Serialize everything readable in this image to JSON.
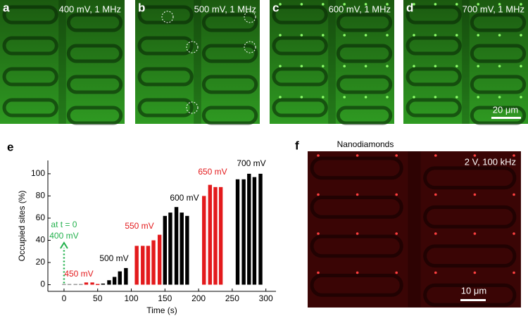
{
  "panels": [
    {
      "label": "a",
      "caption": "400 mV, 1 MHz"
    },
    {
      "label": "b",
      "caption": "500 mV, 1 MHz"
    },
    {
      "label": "c",
      "caption": "600 mV, 1 MHz"
    },
    {
      "label": "d",
      "caption": "700 mV, 1 MHz",
      "scale_bar": "20 μm"
    }
  ],
  "chart_data": {
    "type": "bar",
    "panel_label": "e",
    "x_label": "Time (s)",
    "y_label": "Occupied sites (%)",
    "x": [
      0,
      8,
      17,
      25,
      33,
      42,
      50,
      58,
      67,
      75,
      83,
      92,
      108,
      117,
      125,
      133,
      142,
      150,
      158,
      167,
      175,
      183,
      208,
      217,
      225,
      233,
      258,
      267,
      275,
      283,
      292
    ],
    "values": [
      0,
      0,
      0,
      0,
      2,
      2,
      0,
      1,
      4,
      7,
      12,
      15,
      35,
      35,
      35,
      40,
      45,
      62,
      65,
      70,
      65,
      62,
      80,
      90,
      88,
      88,
      95,
      95,
      100,
      97,
      100
    ],
    "colors": [
      "#999999",
      "#999999",
      "#999999",
      "#999999",
      "#e31a1c",
      "#e31a1c",
      "#e31a1c",
      "#000000",
      "#000000",
      "#000000",
      "#000000",
      "#000000",
      "#e31a1c",
      "#e31a1c",
      "#e31a1c",
      "#e31a1c",
      "#e31a1c",
      "#000000",
      "#000000",
      "#000000",
      "#000000",
      "#000000",
      "#e31a1c",
      "#e31a1c",
      "#e31a1c",
      "#e31a1c",
      "#000000",
      "#000000",
      "#000000",
      "#000000",
      "#000000"
    ],
    "xlim": [
      -24,
      315
    ],
    "ylim": [
      -6,
      112
    ],
    "xticks": [
      0,
      50,
      100,
      150,
      200,
      250,
      300
    ],
    "yticks": [
      0,
      20,
      40,
      60,
      80,
      100
    ],
    "annotations": [
      {
        "text": "450 mV",
        "color": "#e31a1c"
      },
      {
        "text": "500 mV",
        "color": "#000000"
      },
      {
        "text": "550 mV",
        "color": "#e31a1c"
      },
      {
        "text": "600 mV",
        "color": "#000000"
      },
      {
        "text": "650 mV",
        "color": "#e31a1c"
      },
      {
        "text": "700 mV",
        "color": "#000000"
      }
    ],
    "start_note": {
      "lines": [
        "at t = 0",
        "400 mV"
      ],
      "color": "#22b14c"
    }
  },
  "image_f": {
    "label": "f",
    "title": "Nanodiamonds",
    "caption": "2 V, 100 kHz",
    "scale_bar": "10 μm"
  }
}
